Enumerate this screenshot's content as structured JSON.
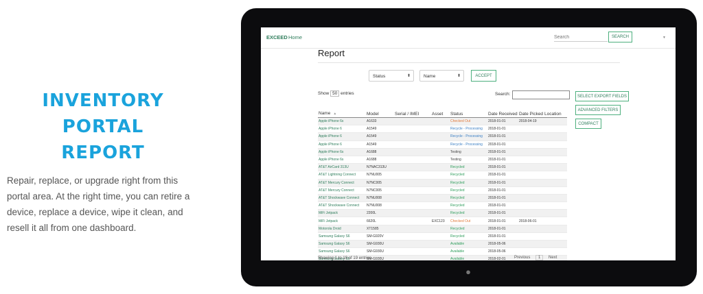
{
  "hero": {
    "title_line1": "INVENTORY PORTAL",
    "title_line2": "REPORT",
    "description": "Repair, replace, or upgrade right from this portal area. At the right time, you can retire a device, replace a device, wipe it clean, and resell it all from one dashboard."
  },
  "app": {
    "brand": "EXCEED",
    "nav_home": "Home",
    "search_placeholder": "Search",
    "search_button": "SEARCH",
    "menu_caret": "▼"
  },
  "report": {
    "title": "Report",
    "filters": [
      {
        "label": "Status"
      },
      {
        "label": "Name"
      }
    ],
    "accept_button": "ACCEPT",
    "show_prefix": "Show",
    "show_count": "50",
    "show_suffix": "entries",
    "search_label": "Search:",
    "side_buttons": [
      "SELECT EXPORT FIELDS",
      "ADVANCED FILTERS",
      "COMPACT"
    ],
    "columns": [
      "Name",
      "Model",
      "Serial / IMEI",
      "Asset",
      "Status",
      "Date Received",
      "Date Picked",
      "Location"
    ],
    "rows": [
      [
        "Apple iPhone 6s",
        "A1633",
        "",
        "",
        "Checked Out",
        "2018-01-01",
        "2018-04-19",
        ""
      ],
      [
        "Apple iPhone 6",
        "A1549",
        "",
        "",
        "Recycle - Processing",
        "2018-01-01",
        "",
        ""
      ],
      [
        "Apple iPhone 6",
        "A1549",
        "",
        "",
        "Recycle - Processing",
        "2018-01-01",
        "",
        ""
      ],
      [
        "Apple iPhone 6",
        "A1549",
        "",
        "",
        "Recycle - Processing",
        "2018-01-01",
        "",
        ""
      ],
      [
        "Apple iPhone 6s",
        "A1688",
        "",
        "",
        "Testing",
        "2018-01-01",
        "",
        ""
      ],
      [
        "Apple iPhone 6s",
        "A1688",
        "",
        "",
        "Testing",
        "2018-01-01",
        "",
        ""
      ],
      [
        "AT&T AirCard 313U",
        "N7NAC313U",
        "",
        "",
        "Recycled",
        "2018-01-01",
        "",
        ""
      ],
      [
        "AT&T Lightning Connect",
        "N7NU005",
        "",
        "",
        "Recycled",
        "2018-01-01",
        "",
        ""
      ],
      [
        "AT&T Mercury Connect",
        "N7NC005",
        "",
        "",
        "Recycled",
        "2018-01-01",
        "",
        ""
      ],
      [
        "AT&T Mercury Connect",
        "N7NC005",
        "",
        "",
        "Recycled",
        "2018-01-01",
        "",
        ""
      ],
      [
        "AT&T Shockwave Connect",
        "N7NU008",
        "",
        "",
        "Recycled",
        "2018-01-01",
        "",
        ""
      ],
      [
        "AT&T Shockwave Connect",
        "N7NU008",
        "",
        "",
        "Recycled",
        "2018-01-01",
        "",
        ""
      ],
      [
        "MiFi Jetpack",
        "2200L",
        "",
        "",
        "Recycled",
        "2018-01-01",
        "",
        ""
      ],
      [
        "MiFi Jetpack",
        "6620L",
        "",
        "EXC123",
        "Checked Out",
        "2018-01-01",
        "2018-06-01",
        ""
      ],
      [
        "Motorola Droid",
        "XT1585",
        "",
        "",
        "Recycled",
        "2018-01-01",
        "",
        ""
      ],
      [
        "Samsung Galaxy S6",
        "SM-G920V",
        "",
        "",
        "Recycled",
        "2018-01-01",
        "",
        ""
      ],
      [
        "Samsung Galaxy S6",
        "SM-G930U",
        "",
        "",
        "Available",
        "2018-05-06",
        "",
        ""
      ],
      [
        "Samsung Galaxy S6",
        "SM-G930U",
        "",
        "",
        "Available",
        "2018-05-06",
        "",
        ""
      ],
      [
        "Samsung Galaxy S6",
        "SM-G930U",
        "",
        "",
        "Available",
        "2018-02-01",
        "",
        ""
      ]
    ],
    "footer_text": "Showing 1 to 19 of 19 entries",
    "pager": {
      "previous": "Previous",
      "page": "1",
      "next": "Next"
    }
  },
  "colors": {
    "accent_green": "#2e7d5b",
    "hero_blue": "#1aa3dc",
    "status_checked_out": "#e2793a",
    "status_processing": "#3b7fc4",
    "status_recycled": "#2e9d5b"
  }
}
